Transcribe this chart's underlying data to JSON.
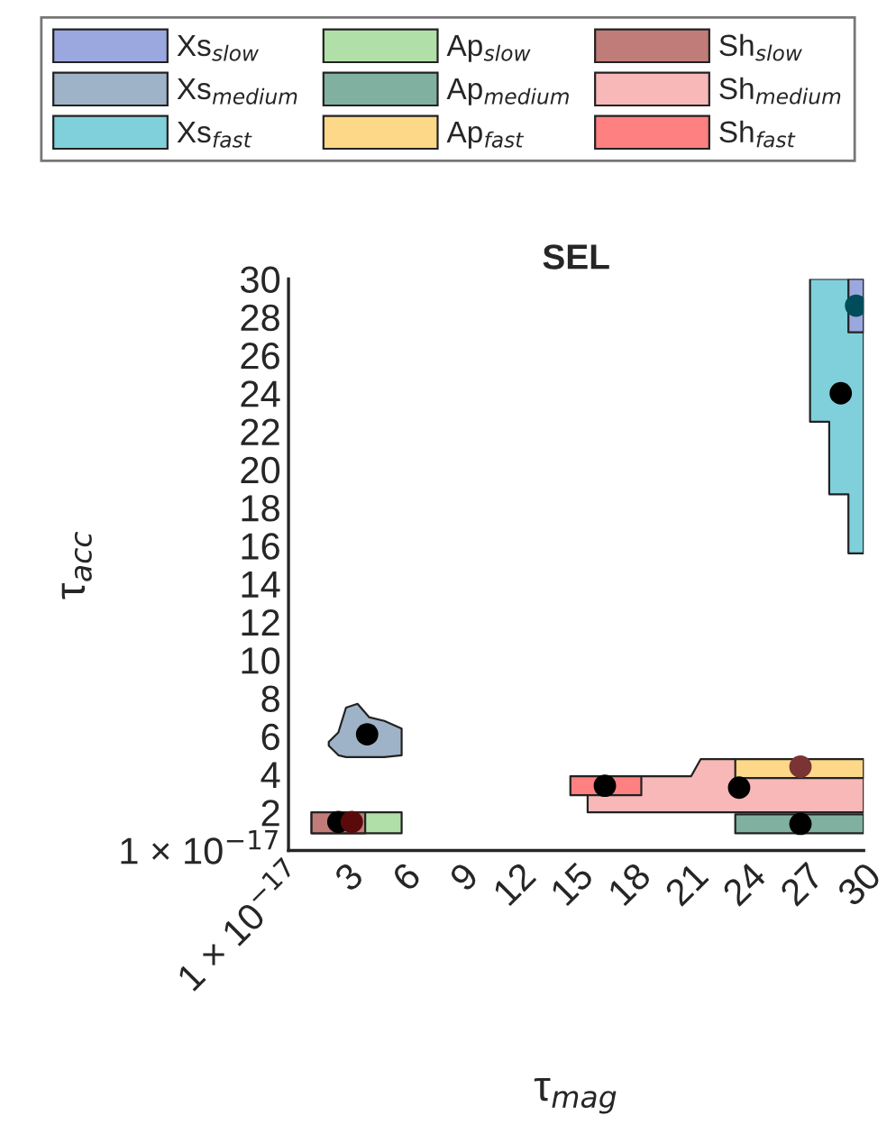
{
  "chart_data": {
    "type": "area",
    "title": "SEL",
    "xlabel": "τ$_{mag}$",
    "ylabel": "τ$_{acc}$",
    "legend": "top",
    "grid": false,
    "xlim": [
      0,
      30
    ],
    "ylim": [
      0,
      30
    ],
    "xticks": [
      {
        "value": 0,
        "label": "1 × 10$^{−17}$"
      },
      3,
      6,
      9,
      12,
      15,
      18,
      21,
      24,
      27,
      30
    ],
    "yticks": [
      {
        "value": 0,
        "label": "1 × 10$^{−17}$"
      },
      2,
      4,
      6,
      8,
      10,
      12,
      14,
      16,
      18,
      20,
      22,
      24,
      26,
      28,
      30
    ],
    "series": [
      {
        "name": "Xs$_{slow}$",
        "color": "#9ba8df",
        "x": [
          29.2,
          30
        ],
        "values": [
          null,
          null
        ],
        "lower": [
          27.2,
          27.2
        ],
        "upper": [
          30,
          30
        ]
      },
      {
        "name": "Xs$_{medium}$",
        "color": "#9fb3c8",
        "x": [
          2.1,
          2.6,
          3.0,
          3.6,
          4.2,
          5.0,
          5.9
        ],
        "values": [
          null,
          null,
          null,
          null,
          null,
          null,
          null
        ],
        "lower": [
          5.5,
          5.0,
          4.9,
          4.9,
          4.9,
          4.9,
          5.0
        ],
        "upper": [
          5.7,
          6.2,
          7.5,
          7.7,
          7.0,
          6.8,
          6.4
        ]
      },
      {
        "name": "Xs$_{fast}$",
        "color": "#80d0db",
        "x": [
          27.2,
          28.2,
          28.2,
          29.2,
          29.2,
          30
        ],
        "values": [
          null,
          null,
          null,
          null,
          null,
          null
        ],
        "lower": [
          22.5,
          22.5,
          18.7,
          18.7,
          15.6,
          15.6
        ],
        "upper": [
          30,
          30,
          30,
          30,
          30,
          30
        ]
      },
      {
        "name": "Ap$_{slow}$",
        "color": "#b0e0a8",
        "x": [
          1.2,
          5.9
        ],
        "values": [
          null,
          null
        ],
        "lower": [
          0.9,
          0.9
        ],
        "upper": [
          2.0,
          2.0
        ]
      },
      {
        "name": "Ap$_{medium}$",
        "color": "#80b0a0",
        "x": [
          23.3,
          30
        ],
        "values": [
          null,
          null
        ],
        "lower": [
          0.9,
          0.9
        ],
        "upper": [
          1.9,
          1.9
        ]
      },
      {
        "name": "Ap$_{fast}$",
        "color": "#fcd888",
        "x": [
          23.3,
          30
        ],
        "values": [
          null,
          null
        ],
        "lower": [
          3.8,
          3.8
        ],
        "upper": [
          4.8,
          4.8
        ]
      },
      {
        "name": "Sh$_{slow}$",
        "color": "#c07c78",
        "x": [
          1.2,
          4.0
        ],
        "values": [
          null,
          null
        ],
        "lower": [
          0.9,
          0.9
        ],
        "upper": [
          2.0,
          2.0
        ]
      },
      {
        "name": "Sh$_{medium}$",
        "color": "#f8b8b8",
        "x": [
          15.6,
          21.0,
          21.5,
          30
        ],
        "values": [
          null,
          null,
          null,
          null
        ],
        "lower": [
          2.0,
          2.0,
          2.0,
          2.0
        ],
        "upper": [
          3.9,
          3.9,
          4.8,
          4.8
        ]
      },
      {
        "name": "Sh$_{fast}$",
        "color": "#ff8080",
        "x": [
          14.7,
          18.4
        ],
        "values": [
          null,
          null
        ],
        "lower": [
          2.9,
          2.9
        ],
        "upper": [
          3.9,
          3.9
        ]
      },
      {
        "type": "scatter",
        "marker": "circle",
        "x": [
          2.6,
          3.3,
          4.1,
          16.5,
          23.5,
          26.7,
          26.7,
          28.8,
          29.6
        ],
        "values": [
          1.5,
          1.5,
          6.1,
          3.4,
          3.3,
          4.4,
          1.4,
          24.0,
          28.6
        ],
        "colors": [
          "#000000",
          "#5a0a0a",
          "#000000",
          "#000000",
          "#000000",
          "#7a3434",
          "#000000",
          "#000000",
          "#004c5a"
        ]
      }
    ]
  }
}
